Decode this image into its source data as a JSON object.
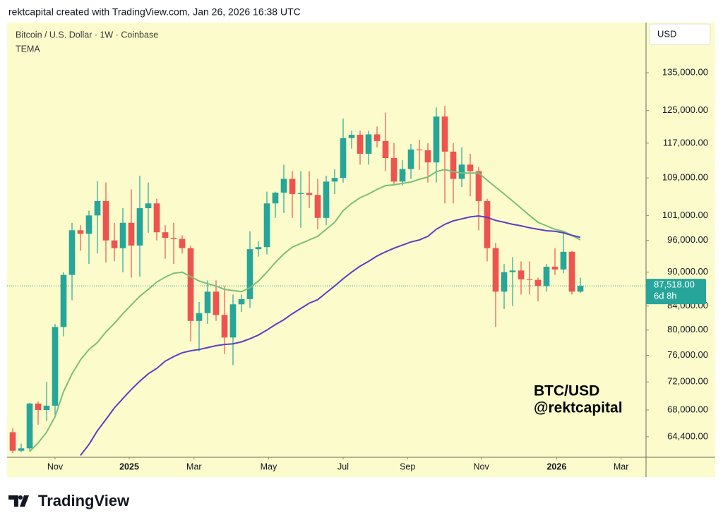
{
  "header": {
    "text": "rektcapital created with TradingView.com, Jan 26, 2026 16:38 UTC"
  },
  "chart_data": {
    "type": "candlestick",
    "title": "Bitcoin / U.S. Dollar · 1W · Coinbase",
    "indicator": "TEMA",
    "currency": "USD",
    "watermark": [
      "BTC/USD",
      "@rektcapital"
    ],
    "log_scale": true,
    "up_color": "#26a69a",
    "down_color": "#ef5350",
    "background": "#fcfbcb",
    "ylim": [
      61770,
      149500
    ],
    "yticks": [
      {
        "value": 64400,
        "label": "64,400.00"
      },
      {
        "value": 68000,
        "label": "68,000.00"
      },
      {
        "value": 72000,
        "label": "72,000.00"
      },
      {
        "value": 76000,
        "label": "76,000.00"
      },
      {
        "value": 80000,
        "label": "80,000.00"
      },
      {
        "value": 84000,
        "label": "84,000.00"
      },
      {
        "value": 90000,
        "label": "90,000.00"
      },
      {
        "value": 96000,
        "label": "96,000.00"
      },
      {
        "value": 101000,
        "label": "101,000.00"
      },
      {
        "value": 109000,
        "label": "109,000.00"
      },
      {
        "value": 117000,
        "label": "117,000.00"
      },
      {
        "value": 125000,
        "label": "125,000.00"
      },
      {
        "value": 135000,
        "label": "135,000.00"
      }
    ],
    "xlim": [
      -0.667,
      74.75
    ],
    "xticks": [
      {
        "value": 5,
        "label": "Nov"
      },
      {
        "value": 13.75,
        "label": "2025"
      },
      {
        "value": 21.4,
        "label": "Mar"
      },
      {
        "value": 30.2,
        "label": "May"
      },
      {
        "value": 39,
        "label": "Jul"
      },
      {
        "value": 46.6,
        "label": "Sep"
      },
      {
        "value": 55.3,
        "label": "Nov"
      },
      {
        "value": 64.2,
        "label": "2026"
      },
      {
        "value": 71.8,
        "label": "Mar"
      }
    ],
    "candles": {
      "open": [
        65000,
        62600,
        62900,
        68900,
        68000,
        68600,
        80500,
        89500,
        98000,
        97300,
        101000,
        104000,
        96000,
        94500,
        99500,
        95000,
        102500,
        103500,
        97600,
        96500,
        96300,
        94500,
        81500,
        82800,
        86500,
        82500,
        78800,
        84300,
        85200,
        94300,
        94700,
        103500,
        105800,
        108800,
        105500,
        105700,
        105300,
        100500,
        108200,
        109000,
        118200,
        119000,
        114500,
        119100,
        117500,
        113500,
        108200,
        111000,
        115500,
        115300,
        112500,
        123500,
        115000,
        108800,
        112000,
        110500,
        104000,
        94500,
        86500,
        90000,
        90300,
        88700,
        88600,
        87500,
        91000,
        90500,
        93800,
        86500
      ],
      "high": [
        65500,
        63500,
        69000,
        69200,
        72000,
        81000,
        90000,
        99500,
        99000,
        102000,
        108300,
        108000,
        99500,
        102500,
        106500,
        109500,
        108000,
        104500,
        99000,
        99500,
        97000,
        95000,
        84700,
        88500,
        88500,
        87500,
        86000,
        86000,
        97800,
        95800,
        106000,
        106000,
        112000,
        110500,
        110500,
        110500,
        108800,
        109500,
        111000,
        123000,
        120000,
        120000,
        120000,
        121000,
        124500,
        117000,
        113000,
        116800,
        117800,
        117000,
        125800,
        126200,
        117000,
        116000,
        114500,
        111500,
        104500,
        95500,
        91500,
        92800,
        92000,
        92000,
        89000,
        91500,
        94500,
        97800,
        94000,
        89000
      ],
      "low": [
        62300,
        62400,
        62500,
        66000,
        66500,
        67000,
        79000,
        85000,
        94000,
        91500,
        93500,
        91800,
        92000,
        90000,
        89000,
        89200,
        97500,
        96000,
        92500,
        91500,
        93500,
        78200,
        76600,
        81000,
        81500,
        76200,
        74500,
        83000,
        83700,
        92900,
        93300,
        100500,
        101500,
        100500,
        98500,
        102500,
        98200,
        99000,
        105500,
        108000,
        115700,
        112000,
        112000,
        116000,
        110500,
        107500,
        107300,
        108800,
        110800,
        108000,
        108000,
        103500,
        103500,
        107000,
        105000,
        98000,
        92000,
        80500,
        83500,
        84000,
        86000,
        86000,
        84800,
        86500,
        89500,
        89800,
        86000,
        86300
      ],
      "close": [
        62600,
        62900,
        68900,
        68000,
        68600,
        80500,
        89500,
        98000,
        97300,
        101000,
        104000,
        96000,
        94500,
        99500,
        95000,
        102500,
        103500,
        97600,
        96500,
        96300,
        94500,
        81500,
        82800,
        86500,
        82500,
        78800,
        84300,
        85200,
        94300,
        94700,
        103500,
        105800,
        108800,
        105500,
        105700,
        105300,
        100500,
        108200,
        109000,
        118200,
        119000,
        114500,
        119100,
        117500,
        113500,
        108200,
        111000,
        115500,
        115300,
        112500,
        123500,
        115000,
        108800,
        112000,
        110500,
        104000,
        94500,
        86500,
        90000,
        90300,
        88700,
        88600,
        87500,
        91000,
        90500,
        93800,
        86500,
        87518
      ]
    },
    "lines": [
      {
        "color": "#79c07a",
        "values": [
          null,
          null,
          62500,
          63600,
          65000,
          67100,
          70600,
          73200,
          75300,
          76900,
          78000,
          79700,
          81100,
          82700,
          84200,
          85700,
          86900,
          88200,
          89100,
          89800,
          90000,
          89200,
          88400,
          87900,
          87500,
          86900,
          86700,
          86500,
          87200,
          88400,
          90000,
          91800,
          93400,
          94700,
          95400,
          96100,
          96800,
          98200,
          99600,
          102000,
          103500,
          104700,
          105500,
          106500,
          107300,
          107500,
          107800,
          108100,
          108700,
          109200,
          110400,
          110900,
          110400,
          110100,
          110100,
          110100,
          108500,
          107000,
          105500,
          104000,
          102500,
          101000,
          99600,
          98900,
          98200,
          97800,
          97000,
          96100
        ]
      },
      {
        "color": "#5b3fc4",
        "values": [
          null,
          null,
          null,
          null,
          null,
          null,
          null,
          null,
          62000,
          63400,
          65200,
          66700,
          68300,
          69600,
          70900,
          72100,
          73200,
          74000,
          75100,
          75800,
          76400,
          76700,
          76900,
          77200,
          77500,
          77700,
          77800,
          78100,
          78600,
          79200,
          80000,
          80900,
          81700,
          82700,
          83600,
          84500,
          85100,
          86300,
          87500,
          88800,
          90000,
          91100,
          92000,
          93000,
          93800,
          94500,
          95100,
          95700,
          96100,
          96800,
          98200,
          99200,
          99900,
          100300,
          100700,
          100900,
          100600,
          100000,
          99600,
          99200,
          98900,
          98500,
          98200,
          97900,
          97800,
          97500,
          97000,
          96600
        ]
      }
    ],
    "last_price": {
      "value": 87518,
      "label": "87,518.00"
    },
    "countdown": "6d 8h"
  },
  "footer": {
    "brand": "TradingView"
  }
}
